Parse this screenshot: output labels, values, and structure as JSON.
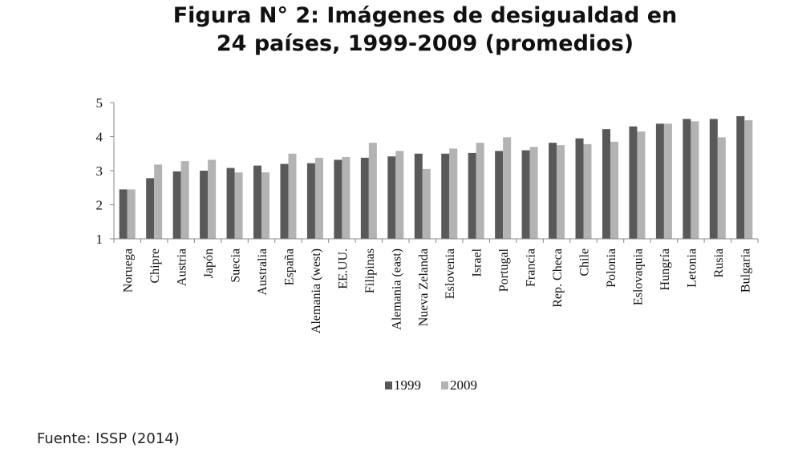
{
  "chart_data": {
    "type": "bar",
    "title_lines": [
      "Figura N° 2: Imágenes de desigualdad en",
      "24 países, 1999-2009 (promedios)"
    ],
    "categories": [
      "Noruega",
      "Chipre",
      "Austria",
      "Japón",
      "Suecia",
      "Australia",
      "España",
      "Alemania (west)",
      "EE.UU.",
      "Filipinas",
      "Alemania (east)",
      "Nueva Zelanda",
      "Eslovenia",
      "Israel",
      "Portugal",
      "Francia",
      "Rep. Checa",
      "Chile",
      "Polonia",
      "Eslovaquia",
      "Hungría",
      "Letonia",
      "Rusia",
      "Bulgaria"
    ],
    "series": [
      {
        "name": "1999",
        "color": "#595959",
        "values": [
          2.45,
          2.78,
          2.98,
          3.0,
          3.08,
          3.15,
          3.2,
          3.22,
          3.32,
          3.38,
          3.42,
          3.5,
          3.5,
          3.52,
          3.58,
          3.6,
          3.82,
          3.95,
          4.22,
          4.3,
          4.38,
          4.52,
          4.52,
          4.6
        ]
      },
      {
        "name": "2009",
        "color": "#b3b3b3",
        "values": [
          2.45,
          3.18,
          3.28,
          3.32,
          2.95,
          2.95,
          3.5,
          3.38,
          3.4,
          3.82,
          3.58,
          3.05,
          3.65,
          3.82,
          3.98,
          3.7,
          3.75,
          3.78,
          3.85,
          4.15,
          4.38,
          4.45,
          3.98,
          4.48
        ]
      }
    ],
    "yticks": [
      1,
      2,
      3,
      4,
      5
    ],
    "ylim": [
      1,
      5
    ],
    "xlabel": "",
    "ylabel": "",
    "legend_position": "bottom-center",
    "grid": false
  },
  "source_note": "Fuente: ISSP (2014)"
}
